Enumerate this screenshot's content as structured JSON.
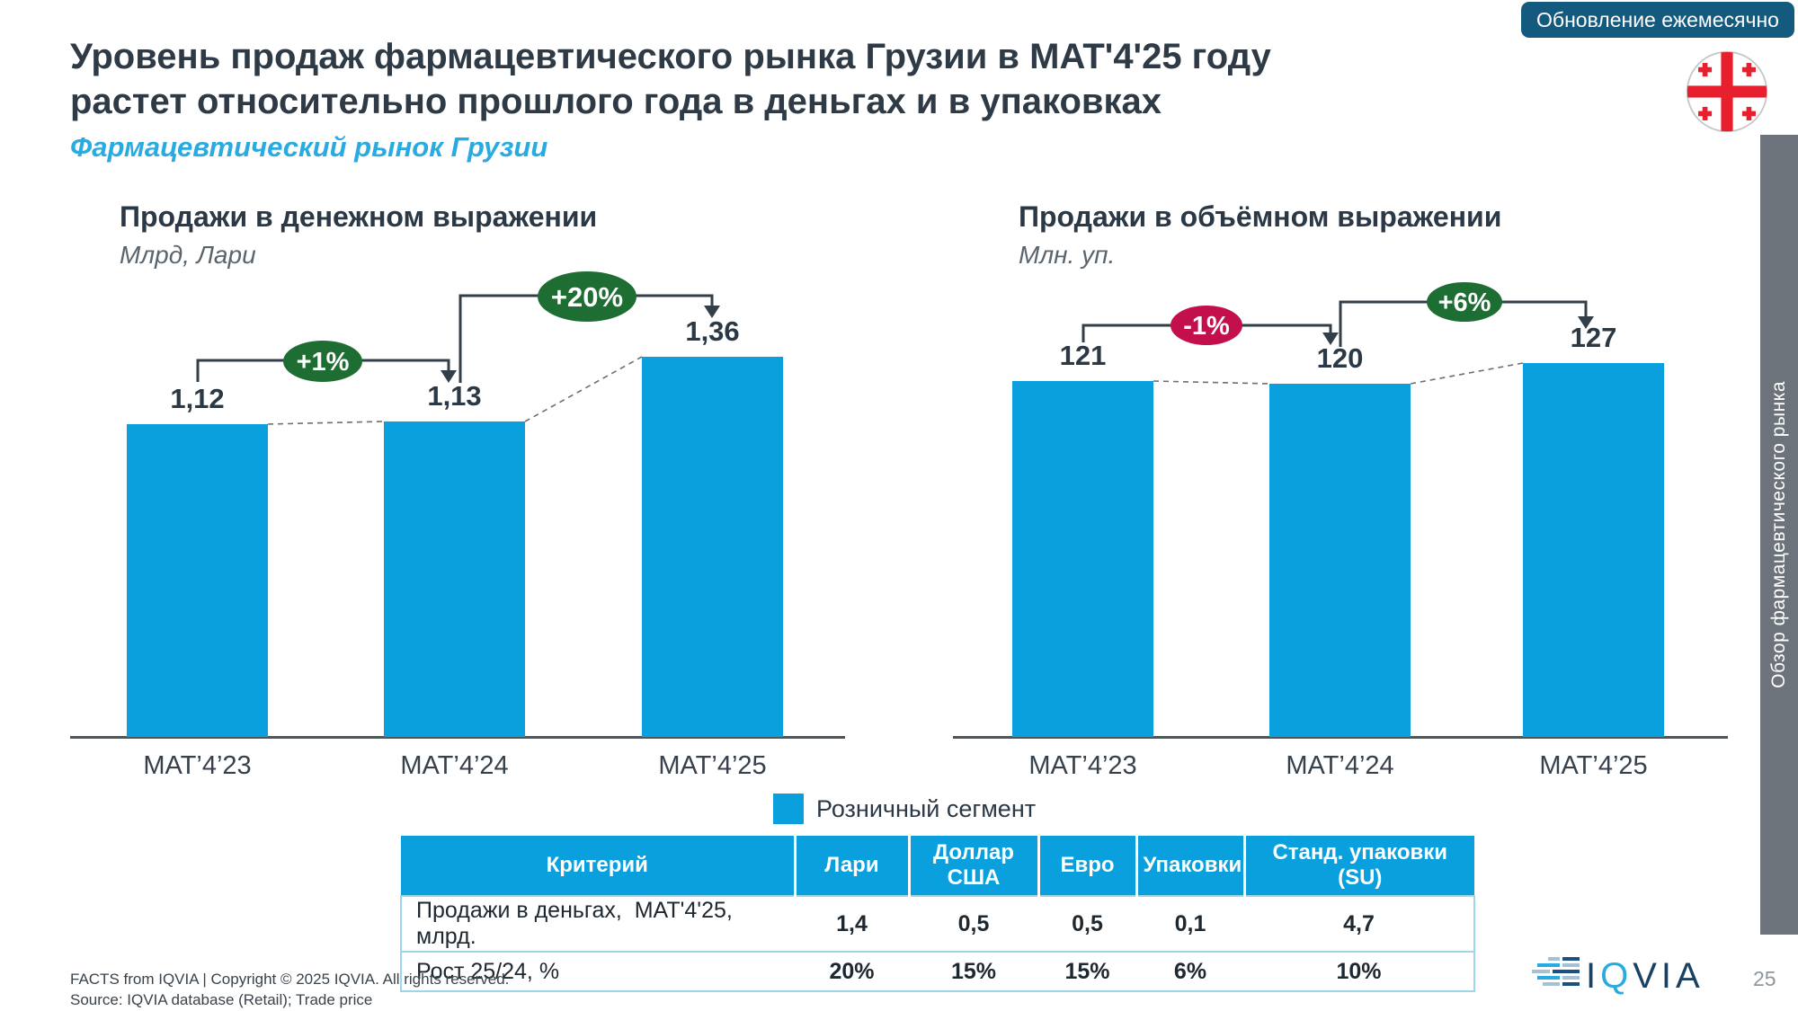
{
  "update_badge": "Обновление ежемесячно",
  "title_line1": "Уровень продаж фармацевтического рынка Грузии в MAT'4'25 году",
  "title_line2": "растет относительно прошлого года в деньгах и в упаковках",
  "subtitle": "Фармацевтический рынок Грузии",
  "sidebar_label": "Обзор фармацевтического рынка",
  "legend": {
    "label": "Розничный сегмент",
    "color": "#09a0dd"
  },
  "chart_data": [
    {
      "type": "bar",
      "title": "Продажи в денежном выражении",
      "subtitle": "Млрд, Лари",
      "series_name": "Розничный сегмент",
      "categories": [
        "MAT’4’23",
        "MAT’4’24",
        "MAT’4’25"
      ],
      "values": [
        1.12,
        1.13,
        1.36
      ],
      "value_labels": [
        "1,12",
        "1,13",
        "1,36"
      ],
      "growth": [
        {
          "label": "+1%",
          "from": "MAT’4’23",
          "to": "MAT’4’24",
          "color": "#1e6e34"
        },
        {
          "label": "+20%",
          "from": "MAT’4’24",
          "to": "MAT’4’25",
          "color": "#1e6e34"
        }
      ],
      "bar_color": "#09a0dd",
      "ylim": [
        0,
        1.36
      ],
      "grid": false,
      "legend_position": "bottom"
    },
    {
      "type": "bar",
      "title": "Продажи в объёмном выражении",
      "subtitle": "Млн. уп.",
      "series_name": "Розничный сегмент",
      "categories": [
        "MAT’4’23",
        "MAT’4’24",
        "MAT’4’25"
      ],
      "values": [
        121,
        120,
        127
      ],
      "value_labels": [
        "121",
        "120",
        "127"
      ],
      "growth": [
        {
          "label": "-1%",
          "from": "MAT’4’23",
          "to": "MAT’4’24",
          "color": "#c3104c"
        },
        {
          "label": "+6%",
          "from": "MAT’4’24",
          "to": "MAT’4’25",
          "color": "#1e6e34"
        }
      ],
      "bar_color": "#09a0dd",
      "ylim": [
        0,
        127
      ],
      "grid": false,
      "legend_position": "bottom"
    }
  ],
  "table": {
    "headers": [
      "Критерий",
      "Лари",
      "Доллар США",
      "Евро",
      "Упаковки",
      "Станд. упаковки (SU)"
    ],
    "rows": [
      {
        "label": "Продажи в деньгах,  MAT'4'25, млрд.",
        "values": [
          "1,4",
          "0,5",
          "0,5",
          "0,1",
          "4,7"
        ]
      },
      {
        "label": "Рост 25/24, %",
        "values": [
          "20%",
          "15%",
          "15%",
          "6%",
          "10%"
        ]
      }
    ]
  },
  "footer": {
    "facts": "FACTS from IQVIA | Copyright © 2025 IQVIA. All rights reserved.",
    "source": "Source: IQVIA database (Retail); Trade price",
    "logo_i": "I",
    "logo_q": "Q",
    "logo_via": "VIA",
    "page_number": "25"
  }
}
